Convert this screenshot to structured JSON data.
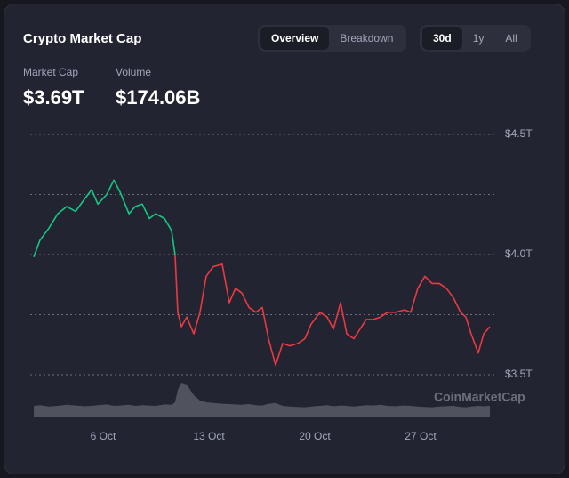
{
  "header": {
    "title": "Crypto Market Cap",
    "tabs": [
      "Overview",
      "Breakdown"
    ],
    "active_tab": 0,
    "ranges": [
      "30d",
      "1y",
      "All"
    ],
    "active_range": 0
  },
  "stats": [
    {
      "label": "Market Cap",
      "value": "$3.69T"
    },
    {
      "label": "Volume",
      "value": "$174.06B"
    }
  ],
  "chart_data": {
    "type": "line",
    "x": [
      1.41,
      1.82,
      2.41,
      3.0,
      3.59,
      4.18,
      4.76,
      5.24,
      5.65,
      6.24,
      6.71,
      7.12,
      7.71,
      8.12,
      8.59,
      9.06,
      9.47,
      10.06,
      10.53,
      10.76,
      10.94,
      11.18,
      11.53,
      12.0,
      12.41,
      12.82,
      13.29,
      13.88,
      14.35,
      14.76,
      15.18,
      15.65,
      16.12,
      16.53,
      16.94,
      17.41,
      17.88,
      18.35,
      18.88,
      19.35,
      19.76,
      20.35,
      20.82,
      21.24,
      21.71,
      22.12,
      22.59,
      23.0,
      23.41,
      23.88,
      24.35,
      24.82,
      25.35,
      25.94,
      26.35,
      26.82,
      27.29,
      27.76,
      28.24,
      28.71,
      29.18,
      29.65,
      30.0,
      30.35,
      30.82,
      31.18,
      31.59
    ],
    "series": [
      {
        "color": "#16c784",
        "values": [
          3.99,
          4.06,
          4.11,
          4.17,
          4.2,
          4.18,
          4.23,
          4.27,
          4.21,
          4.25,
          4.31,
          4.26,
          4.17,
          4.2,
          4.21,
          4.15,
          4.17,
          4.15,
          4.1,
          4.0,
          null,
          null,
          null,
          null,
          null,
          null,
          null,
          null,
          null,
          null,
          null,
          null,
          null,
          null,
          null,
          null,
          null,
          null,
          null,
          null,
          null,
          null,
          null,
          null,
          null,
          null,
          null,
          null,
          null,
          null,
          null,
          null,
          null,
          null,
          null,
          null,
          null,
          null,
          null,
          null,
          null,
          null,
          null,
          null,
          null,
          null,
          null
        ]
      },
      {
        "color": "#ea3943",
        "values": [
          null,
          null,
          null,
          null,
          null,
          null,
          null,
          null,
          null,
          null,
          null,
          null,
          null,
          null,
          null,
          null,
          null,
          null,
          null,
          4.0,
          3.76,
          3.7,
          3.74,
          3.67,
          3.76,
          3.91,
          3.95,
          3.96,
          3.8,
          3.86,
          3.84,
          3.78,
          3.76,
          3.78,
          3.65,
          3.54,
          3.63,
          3.62,
          3.63,
          3.65,
          3.71,
          3.76,
          3.74,
          3.69,
          3.8,
          3.67,
          3.65,
          3.69,
          3.73,
          3.73,
          3.74,
          3.76,
          3.76,
          3.77,
          3.76,
          3.86,
          3.91,
          3.88,
          3.88,
          3.86,
          3.82,
          3.76,
          3.74,
          3.67,
          3.59,
          3.67,
          3.7
        ]
      }
    ],
    "xlim": [
      1.41,
      31.59
    ],
    "xticks": [
      {
        "value": 6,
        "label": "6 Oct"
      },
      {
        "value": 13,
        "label": "13 Oct"
      },
      {
        "value": 20,
        "label": "20 Oct"
      },
      {
        "value": 27,
        "label": "27 Oct"
      }
    ],
    "ylim": [
      3.5,
      4.5
    ],
    "yticks": [
      {
        "value": 3.5,
        "label": "$3.5T"
      },
      {
        "value": 4.0,
        "label": "$4.0T"
      },
      {
        "value": 4.5,
        "label": "$4.5T"
      }
    ],
    "ygrid": [
      3.75,
      4.25
    ],
    "volume": {
      "color": "#50535e",
      "ylim": [
        0,
        100
      ],
      "values": [
        30,
        32,
        28,
        30,
        33,
        31,
        29,
        30,
        32,
        34,
        30,
        31,
        33,
        30,
        32,
        31,
        30,
        34,
        33,
        40,
        75,
        95,
        90,
        60,
        45,
        40,
        38,
        36,
        35,
        34,
        33,
        35,
        32,
        31,
        36,
        38,
        30,
        28,
        27,
        26,
        28,
        30,
        32,
        29,
        31,
        30,
        28,
        30,
        32,
        31,
        33,
        30,
        29,
        31,
        30,
        28,
        27,
        26,
        28,
        29,
        30,
        27,
        26,
        28,
        30,
        29,
        30
      ]
    },
    "watermark": "CoinMarketCap"
  }
}
